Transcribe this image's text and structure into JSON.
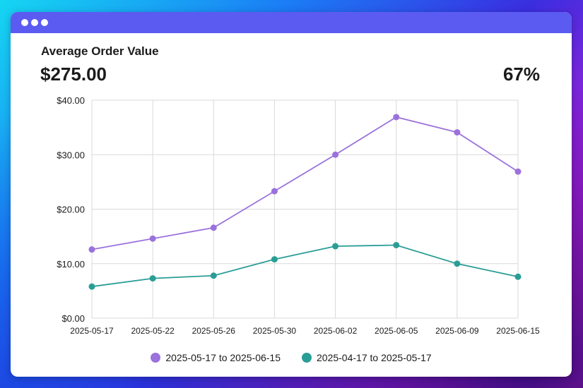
{
  "card": {
    "title": "Average Order Value",
    "total": "$275.00",
    "percent": "67%"
  },
  "colors": {
    "titlebar": "#5b5bf2",
    "series_current": "#9b72dc",
    "series_previous": "#2a9d96"
  },
  "chart_data": {
    "type": "line",
    "title": "",
    "xlabel": "",
    "ylabel": "",
    "ylim": [
      0,
      40
    ],
    "grid": true,
    "legend": "bottom",
    "y_ticks": [
      "$0.00",
      "$10.00",
      "$20.00",
      "$30.00",
      "$40.00"
    ],
    "categories": [
      "2025-05-17",
      "2025-05-22",
      "2025-05-26",
      "2025-05-30",
      "2025-06-02",
      "2025-06-05",
      "2025-06-09",
      "2025-06-15"
    ],
    "series": [
      {
        "name": "2025-05-17 to 2025-06-15",
        "values": [
          12.6,
          14.6,
          16.6,
          23.3,
          30.0,
          36.9,
          34.1,
          26.9
        ]
      },
      {
        "name": "2025-04-17 to 2025-05-17",
        "values": [
          5.8,
          7.3,
          7.8,
          10.8,
          13.2,
          13.4,
          10.0,
          7.6
        ]
      }
    ]
  }
}
